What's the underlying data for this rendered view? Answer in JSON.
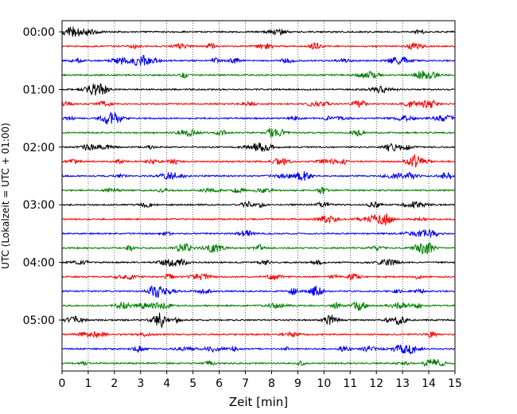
{
  "chart_data": {
    "type": "line",
    "title": "",
    "xlabel": "Zeit  [min]",
    "ylabel": "UTC (Lokalzeit = UTC + 01:00)",
    "xlim": [
      0,
      15
    ],
    "x_ticks": [
      "0",
      "1",
      "2",
      "3",
      "4",
      "5",
      "6",
      "7",
      "8",
      "9",
      "10",
      "11",
      "12",
      "13",
      "14",
      "15"
    ],
    "y_ticks": [
      "00:00",
      "01:00",
      "02:00",
      "03:00",
      "04:00",
      "05:00"
    ],
    "row_minutes": 15,
    "row_count": 24,
    "grid": {
      "x": true,
      "y": false,
      "style": "dotted"
    },
    "colors": [
      "#000000",
      "#ff0000",
      "#0000ff",
      "#008000"
    ]
  }
}
